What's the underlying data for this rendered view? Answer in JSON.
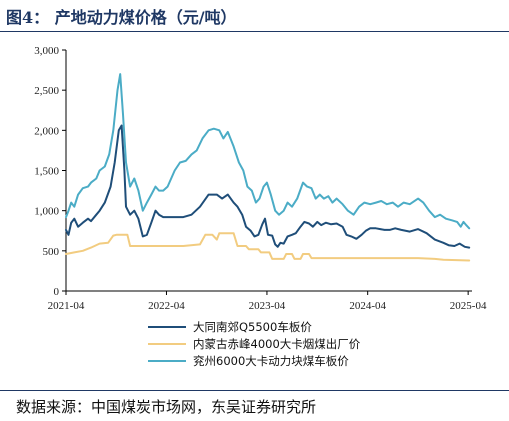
{
  "header": {
    "title": "图4：  产地动力煤价格（元/吨）"
  },
  "footer": {
    "source": "数据来源：中国煤炭市场网，东吴证券研究所"
  },
  "chart_data": {
    "type": "line",
    "title": "产地动力煤价格（元/吨）",
    "xlabel": "",
    "ylabel": "",
    "ylim": [
      0,
      3000
    ],
    "yticks": [
      "0",
      "500",
      "1,000",
      "1,500",
      "2,000",
      "2,500",
      "3,000"
    ],
    "ytick_values": [
      0,
      500,
      1000,
      1500,
      2000,
      2500,
      3000
    ],
    "xticks": [
      "2021-04",
      "2022-04",
      "2023-04",
      "2024-04",
      "2025-04"
    ],
    "xtick_values": [
      "2021-04-01",
      "2022-04-01",
      "2023-04-01",
      "2024-04-01",
      "2025-04-01"
    ],
    "xlim": [
      "2021-04-01",
      "2025-04-15"
    ],
    "grid": false,
    "legend_position": "bottom",
    "series": [
      {
        "name": "大同南郊Q5500车板价",
        "color": "#1f4e79",
        "points": [
          [
            "2021-04-01",
            760
          ],
          [
            "2021-04-10",
            700
          ],
          [
            "2021-04-20",
            850
          ],
          [
            "2021-05-01",
            900
          ],
          [
            "2021-05-15",
            800
          ],
          [
            "2021-06-01",
            850
          ],
          [
            "2021-06-20",
            900
          ],
          [
            "2021-07-01",
            870
          ],
          [
            "2021-07-20",
            950
          ],
          [
            "2021-08-01",
            1000
          ],
          [
            "2021-08-20",
            1100
          ],
          [
            "2021-09-10",
            1300
          ],
          [
            "2021-09-25",
            1600
          ],
          [
            "2021-10-10",
            2000
          ],
          [
            "2021-10-20",
            2060
          ],
          [
            "2021-10-30",
            1500
          ],
          [
            "2021-11-05",
            1050
          ],
          [
            "2021-11-20",
            950
          ],
          [
            "2021-12-05",
            1000
          ],
          [
            "2021-12-20",
            900
          ],
          [
            "2022-01-05",
            680
          ],
          [
            "2022-01-20",
            700
          ],
          [
            "2022-02-05",
            850
          ],
          [
            "2022-02-20",
            1000
          ],
          [
            "2022-03-05",
            950
          ],
          [
            "2022-03-20",
            920
          ],
          [
            "2022-04-05",
            920
          ],
          [
            "2022-05-01",
            920
          ],
          [
            "2022-06-01",
            920
          ],
          [
            "2022-07-01",
            950
          ],
          [
            "2022-08-01",
            1050
          ],
          [
            "2022-09-01",
            1200
          ],
          [
            "2022-10-01",
            1200
          ],
          [
            "2022-10-20",
            1150
          ],
          [
            "2022-11-10",
            1200
          ],
          [
            "2022-12-01",
            1100
          ],
          [
            "2022-12-15",
            1050
          ],
          [
            "2023-01-01",
            950
          ],
          [
            "2023-01-15",
            800
          ],
          [
            "2023-02-01",
            750
          ],
          [
            "2023-02-15",
            680
          ],
          [
            "2023-03-01",
            700
          ],
          [
            "2023-03-15",
            830
          ],
          [
            "2023-03-25",
            900
          ],
          [
            "2023-04-05",
            700
          ],
          [
            "2023-04-20",
            690
          ],
          [
            "2023-05-01",
            580
          ],
          [
            "2023-05-10",
            550
          ],
          [
            "2023-05-20",
            600
          ],
          [
            "2023-06-01",
            590
          ],
          [
            "2023-06-15",
            680
          ],
          [
            "2023-07-01",
            700
          ],
          [
            "2023-07-15",
            720
          ],
          [
            "2023-08-01",
            800
          ],
          [
            "2023-08-15",
            860
          ],
          [
            "2023-09-01",
            840
          ],
          [
            "2023-09-15",
            800
          ],
          [
            "2023-10-01",
            860
          ],
          [
            "2023-10-15",
            820
          ],
          [
            "2023-11-01",
            850
          ],
          [
            "2023-11-20",
            830
          ],
          [
            "2023-12-10",
            840
          ],
          [
            "2024-01-01",
            800
          ],
          [
            "2024-01-15",
            700
          ],
          [
            "2024-02-01",
            680
          ],
          [
            "2024-02-20",
            650
          ],
          [
            "2024-03-10",
            700
          ],
          [
            "2024-03-25",
            750
          ],
          [
            "2024-04-10",
            780
          ],
          [
            "2024-05-01",
            780
          ],
          [
            "2024-06-01",
            760
          ],
          [
            "2024-06-20",
            760
          ],
          [
            "2024-07-10",
            780
          ],
          [
            "2024-08-01",
            760
          ],
          [
            "2024-09-01",
            740
          ],
          [
            "2024-10-01",
            770
          ],
          [
            "2024-11-01",
            720
          ],
          [
            "2024-12-01",
            640
          ],
          [
            "2025-01-01",
            600
          ],
          [
            "2025-01-20",
            570
          ],
          [
            "2025-02-10",
            560
          ],
          [
            "2025-03-01",
            590
          ],
          [
            "2025-03-20",
            550
          ],
          [
            "2025-04-05",
            540
          ]
        ]
      },
      {
        "name": "内蒙古赤峰4000大卡烟煤出厂价",
        "color": "#f2cc80",
        "points": [
          [
            "2021-04-01",
            460
          ],
          [
            "2021-05-01",
            480
          ],
          [
            "2021-06-01",
            500
          ],
          [
            "2021-07-01",
            540
          ],
          [
            "2021-08-01",
            590
          ],
          [
            "2021-09-01",
            600
          ],
          [
            "2021-09-20",
            690
          ],
          [
            "2021-10-01",
            700
          ],
          [
            "2021-11-10",
            700
          ],
          [
            "2021-11-20",
            560
          ],
          [
            "2022-03-01",
            560
          ],
          [
            "2022-06-01",
            560
          ],
          [
            "2022-08-01",
            580
          ],
          [
            "2022-08-20",
            700
          ],
          [
            "2022-09-15",
            700
          ],
          [
            "2022-10-01",
            640
          ],
          [
            "2022-10-10",
            720
          ],
          [
            "2022-12-01",
            720
          ],
          [
            "2022-12-15",
            560
          ],
          [
            "2023-01-15",
            560
          ],
          [
            "2023-01-25",
            520
          ],
          [
            "2023-03-01",
            520
          ],
          [
            "2023-03-10",
            480
          ],
          [
            "2023-04-10",
            480
          ],
          [
            "2023-04-20",
            400
          ],
          [
            "2023-06-01",
            400
          ],
          [
            "2023-06-10",
            460
          ],
          [
            "2023-07-01",
            460
          ],
          [
            "2023-07-10",
            400
          ],
          [
            "2023-08-01",
            400
          ],
          [
            "2023-08-10",
            460
          ],
          [
            "2023-09-01",
            460
          ],
          [
            "2023-09-10",
            410
          ],
          [
            "2024-06-01",
            410
          ],
          [
            "2024-10-01",
            410
          ],
          [
            "2024-12-01",
            400
          ],
          [
            "2025-01-01",
            390
          ],
          [
            "2025-04-05",
            380
          ]
        ]
      },
      {
        "name": "兖州6000大卡动力块煤车板价",
        "color": "#4bacc6",
        "points": [
          [
            "2021-04-01",
            920
          ],
          [
            "2021-04-10",
            1000
          ],
          [
            "2021-04-20",
            1100
          ],
          [
            "2021-05-01",
            1050
          ],
          [
            "2021-05-15",
            1200
          ],
          [
            "2021-06-01",
            1280
          ],
          [
            "2021-06-20",
            1300
          ],
          [
            "2021-07-01",
            1350
          ],
          [
            "2021-07-20",
            1400
          ],
          [
            "2021-08-01",
            1500
          ],
          [
            "2021-08-20",
            1550
          ],
          [
            "2021-09-05",
            1700
          ],
          [
            "2021-09-20",
            2000
          ],
          [
            "2021-10-05",
            2500
          ],
          [
            "2021-10-15",
            2700
          ],
          [
            "2021-10-25",
            2200
          ],
          [
            "2021-11-05",
            1600
          ],
          [
            "2021-11-20",
            1300
          ],
          [
            "2021-12-05",
            1400
          ],
          [
            "2021-12-20",
            1250
          ],
          [
            "2022-01-05",
            1000
          ],
          [
            "2022-01-20",
            1100
          ],
          [
            "2022-02-05",
            1200
          ],
          [
            "2022-02-20",
            1300
          ],
          [
            "2022-03-05",
            1250
          ],
          [
            "2022-03-20",
            1250
          ],
          [
            "2022-04-05",
            1300
          ],
          [
            "2022-05-01",
            1500
          ],
          [
            "2022-05-20",
            1600
          ],
          [
            "2022-06-10",
            1620
          ],
          [
            "2022-07-01",
            1700
          ],
          [
            "2022-07-20",
            1750
          ],
          [
            "2022-08-10",
            1900
          ],
          [
            "2022-09-01",
            2000
          ],
          [
            "2022-09-20",
            2020
          ],
          [
            "2022-10-10",
            2000
          ],
          [
            "2022-10-25",
            1900
          ],
          [
            "2022-11-10",
            1980
          ],
          [
            "2022-12-01",
            1800
          ],
          [
            "2022-12-20",
            1600
          ],
          [
            "2023-01-05",
            1500
          ],
          [
            "2023-01-20",
            1300
          ],
          [
            "2023-02-05",
            1250
          ],
          [
            "2023-02-20",
            1100
          ],
          [
            "2023-03-05",
            1150
          ],
          [
            "2023-03-20",
            1300
          ],
          [
            "2023-04-01",
            1350
          ],
          [
            "2023-04-15",
            1200
          ],
          [
            "2023-05-01",
            1000
          ],
          [
            "2023-05-15",
            950
          ],
          [
            "2023-06-01",
            1000
          ],
          [
            "2023-06-15",
            1100
          ],
          [
            "2023-07-01",
            1050
          ],
          [
            "2023-07-20",
            1150
          ],
          [
            "2023-08-10",
            1350
          ],
          [
            "2023-08-25",
            1300
          ],
          [
            "2023-09-10",
            1280
          ],
          [
            "2023-09-25",
            1150
          ],
          [
            "2023-10-10",
            1200
          ],
          [
            "2023-10-25",
            1150
          ],
          [
            "2023-11-10",
            1180
          ],
          [
            "2023-11-25",
            1100
          ],
          [
            "2023-12-10",
            1150
          ],
          [
            "2024-01-01",
            1080
          ],
          [
            "2024-01-20",
            1000
          ],
          [
            "2024-02-10",
            950
          ],
          [
            "2024-03-01",
            1050
          ],
          [
            "2024-03-20",
            1100
          ],
          [
            "2024-04-10",
            1080
          ],
          [
            "2024-05-01",
            1100
          ],
          [
            "2024-05-20",
            1120
          ],
          [
            "2024-06-10",
            1080
          ],
          [
            "2024-07-01",
            1100
          ],
          [
            "2024-07-20",
            1050
          ],
          [
            "2024-08-10",
            1100
          ],
          [
            "2024-09-01",
            1080
          ],
          [
            "2024-10-01",
            1150
          ],
          [
            "2024-10-20",
            1100
          ],
          [
            "2024-11-10",
            1000
          ],
          [
            "2024-12-01",
            920
          ],
          [
            "2024-12-20",
            950
          ],
          [
            "2025-01-10",
            900
          ],
          [
            "2025-02-01",
            880
          ],
          [
            "2025-02-20",
            860
          ],
          [
            "2025-03-05",
            800
          ],
          [
            "2025-03-15",
            860
          ],
          [
            "2025-03-25",
            820
          ],
          [
            "2025-04-05",
            780
          ]
        ]
      }
    ]
  }
}
